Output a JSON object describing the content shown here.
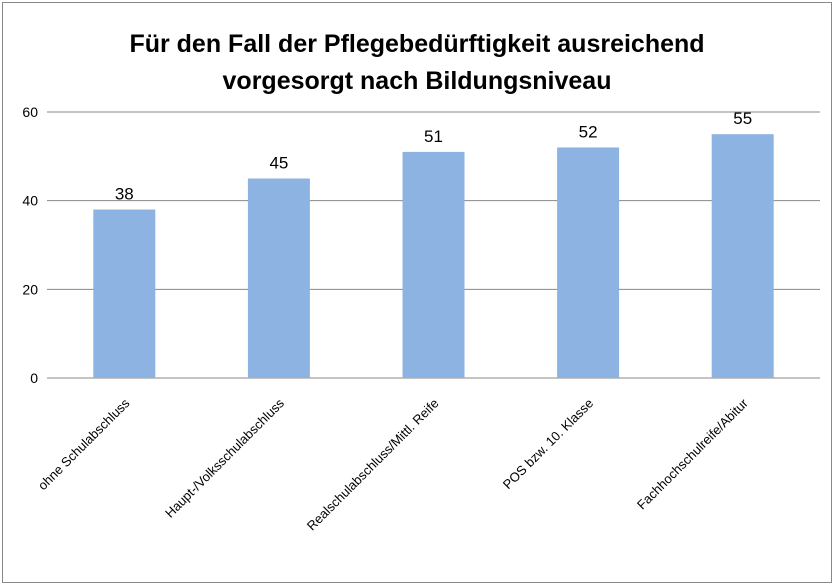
{
  "chart_data": {
    "type": "bar",
    "title": "Für den Fall der Pflegebedürftigkeit ausreichend vorgesorgt nach Bildungsniveau",
    "categories": [
      "ohne Schulabschluss",
      "Haupt-/Volksschulabschluss",
      "Realschulabschluss/Mittl. Reife",
      "POS bzw. 10. Klasse",
      "Fachhochschulreife/Abitur"
    ],
    "values": [
      38,
      45,
      51,
      52,
      55
    ],
    "color": "#8db3e2",
    "ylim": [
      0,
      60
    ],
    "yticks": [
      0,
      20,
      40,
      60
    ],
    "grid": true
  }
}
